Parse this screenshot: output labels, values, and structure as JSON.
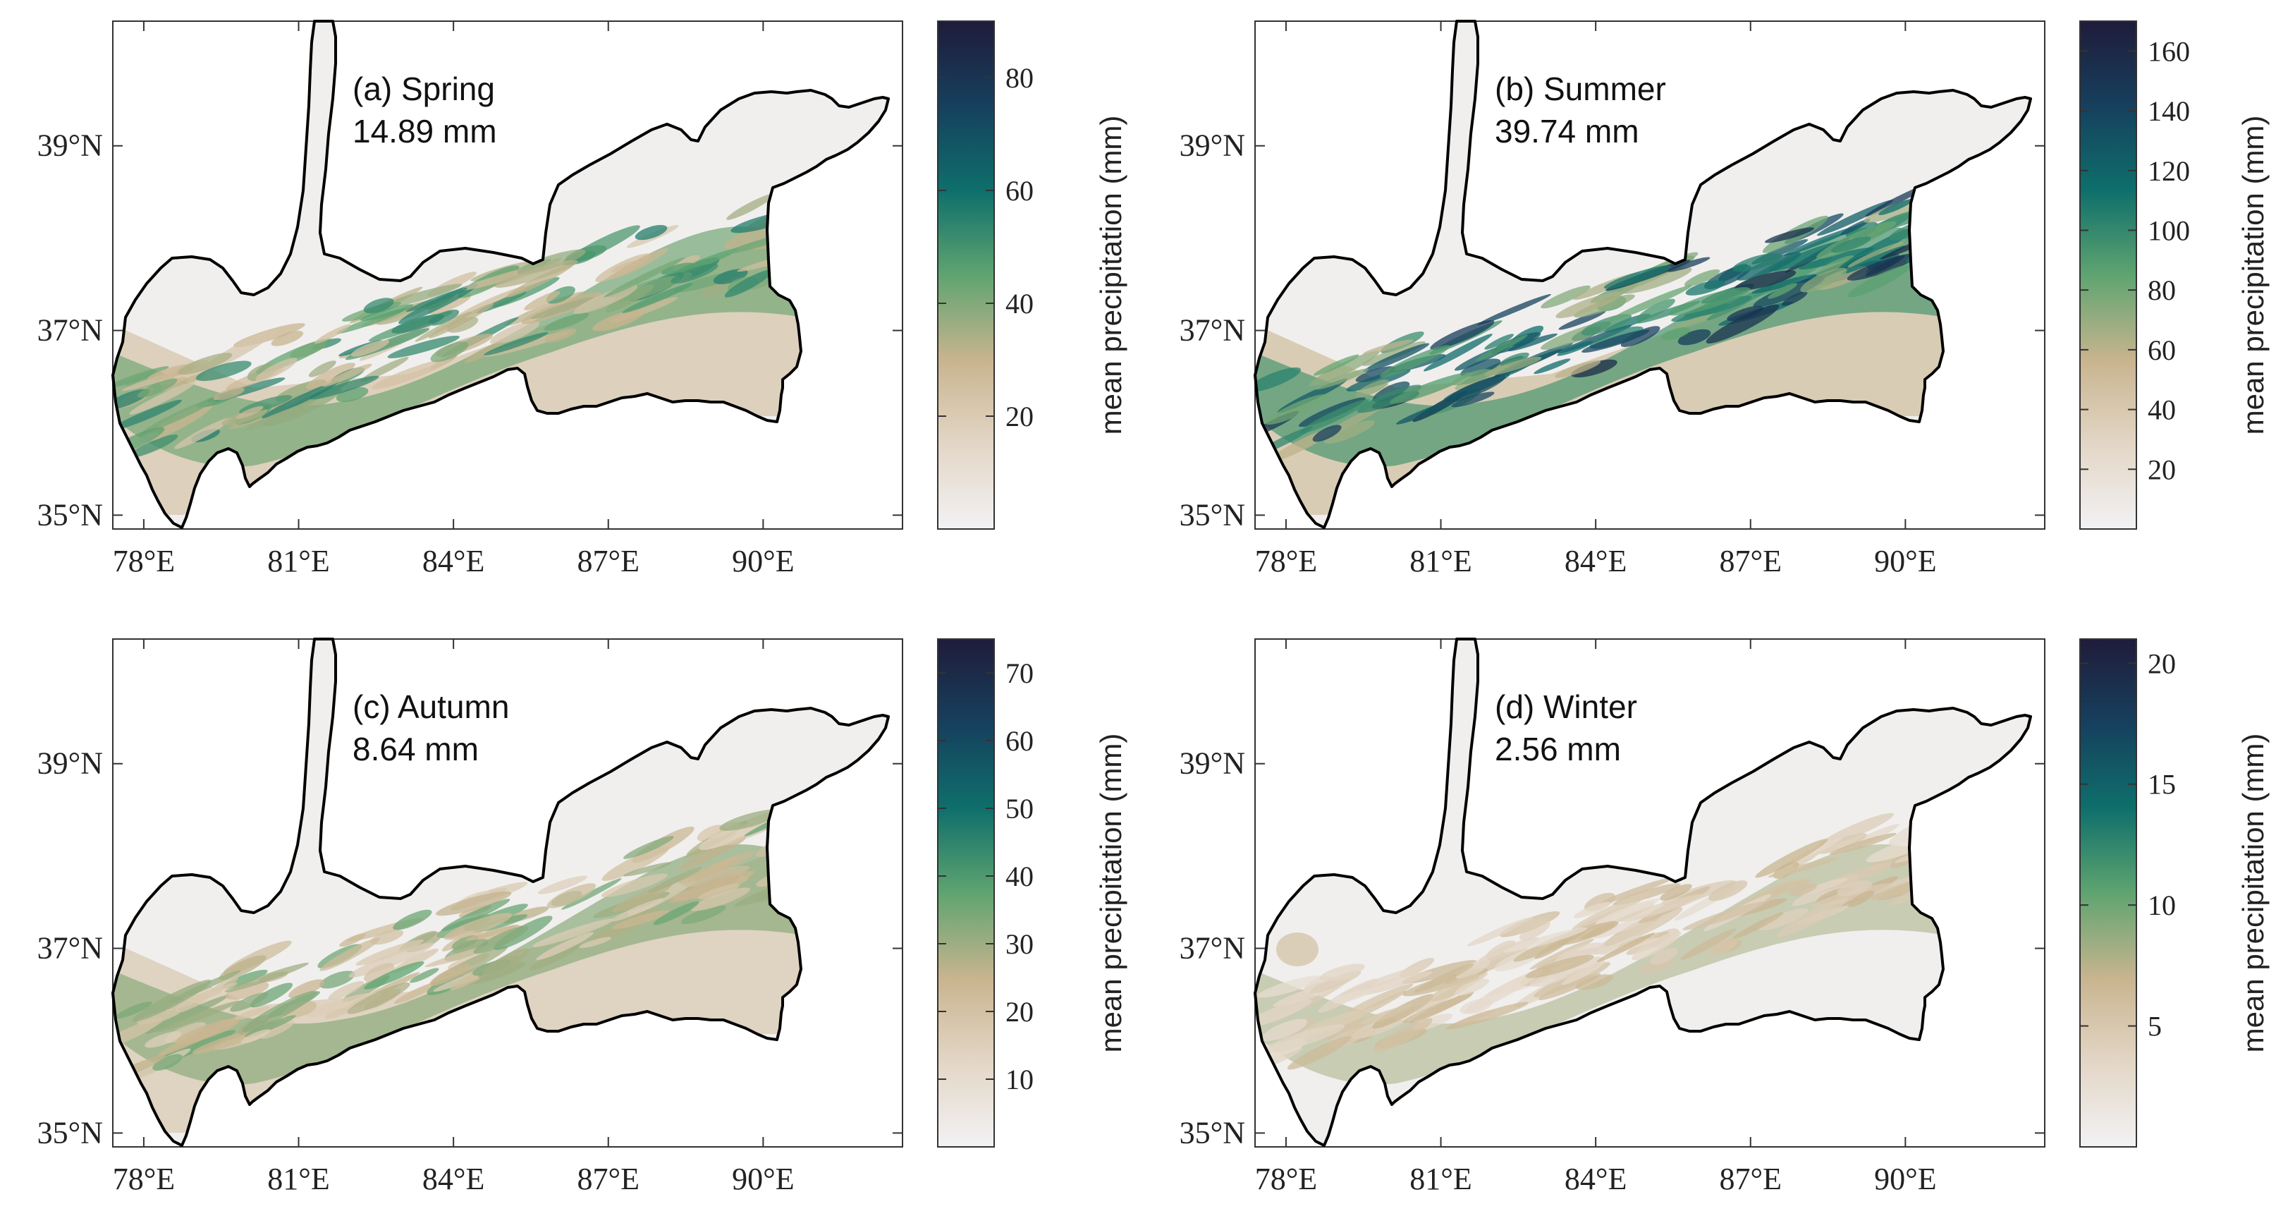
{
  "figure": {
    "colorbar_label": "mean precipitation (mm)",
    "x_ticks": [
      "78°E",
      "81°E",
      "84°E",
      "87°E",
      "90°E"
    ],
    "y_ticks": [
      "35°N",
      "37°N",
      "39°N"
    ],
    "colormap": [
      "#f2f2f4",
      "#e3d6c6",
      "#c8b48e",
      "#5fa470",
      "#0e6f6b",
      "#16405e",
      "#1f1c3a"
    ]
  },
  "panels": [
    {
      "id": "a",
      "title": "(a) Spring",
      "mean": "14.89 mm",
      "cbar_ticks": [
        "20",
        "40",
        "60",
        "80"
      ],
      "cbar_range": [
        0,
        90
      ],
      "intensity": 0.42,
      "ridge_only": false
    },
    {
      "id": "b",
      "title": "(b) Summer",
      "mean": "39.74 mm",
      "cbar_ticks": [
        "20",
        "40",
        "60",
        "80",
        "100",
        "120",
        "140",
        "160"
      ],
      "cbar_range": [
        0,
        170
      ],
      "intensity": 0.62,
      "ridge_only": false
    },
    {
      "id": "c",
      "title": "(c) Autumn",
      "mean": "8.64 mm",
      "cbar_ticks": [
        "10",
        "20",
        "30",
        "40",
        "50",
        "60",
        "70"
      ],
      "cbar_range": [
        0,
        75
      ],
      "intensity": 0.33,
      "ridge_only": false
    },
    {
      "id": "d",
      "title": "(d) Winter",
      "mean": "2.56 mm",
      "cbar_ticks": [
        "5",
        "10",
        "15",
        "20"
      ],
      "cbar_range": [
        0,
        21
      ],
      "intensity": 0.22,
      "ridge_only": true
    }
  ]
}
